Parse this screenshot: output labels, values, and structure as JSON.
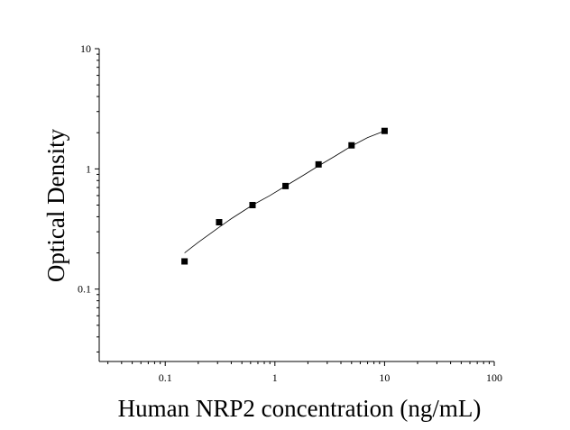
{
  "chart_data": {
    "type": "scatter",
    "xlabel": "Human NRP2 concentration (ng/mL)",
    "ylabel": "Optical Density",
    "x_scale": "log",
    "y_scale": "log",
    "xlim": [
      0.025,
      100
    ],
    "ylim": [
      0.025,
      10
    ],
    "x_ticks": [
      {
        "value": 0.1,
        "label": "0.1"
      },
      {
        "value": 1,
        "label": "1"
      },
      {
        "value": 10,
        "label": "10"
      },
      {
        "value": 100,
        "label": "100"
      }
    ],
    "y_ticks": [
      {
        "value": 0.1,
        "label": "0.1"
      },
      {
        "value": 1,
        "label": "1"
      },
      {
        "value": 10,
        "label": "10"
      }
    ],
    "series": [
      {
        "marker": "square",
        "color": "#000000",
        "x": [
          0.15,
          0.31,
          0.625,
          1.25,
          2.5,
          5,
          10
        ],
        "y": [
          0.17,
          0.36,
          0.5,
          0.72,
          1.09,
          1.57,
          2.07
        ]
      }
    ],
    "fit_curve": {
      "color": "#000000",
      "x": [
        0.15,
        0.2,
        0.3,
        0.4,
        0.625,
        0.9,
        1.25,
        1.8,
        2.5,
        3.5,
        5,
        7,
        10
      ],
      "y": [
        0.2,
        0.245,
        0.32,
        0.385,
        0.5,
        0.6,
        0.72,
        0.88,
        1.06,
        1.27,
        1.55,
        1.82,
        2.07
      ]
    },
    "grid": false,
    "legend": "none"
  }
}
